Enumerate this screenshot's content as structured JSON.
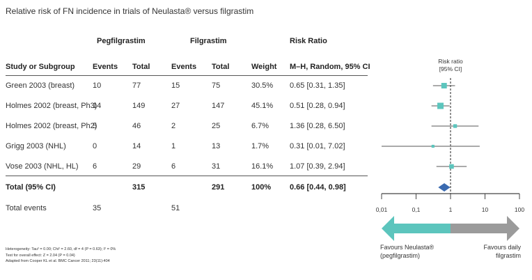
{
  "title": "Relative risk of FN incidence in trials of Neulasta® versus filgrastim",
  "groups": {
    "pegfilgrastim": "Pegfilgrastim",
    "filgrastim": "Filgrastim",
    "risk_ratio": "Risk Ratio"
  },
  "headers": {
    "study": "Study or Subgroup",
    "events1": "Events",
    "total1": "Total",
    "events2": "Events",
    "total2": "Total",
    "weight": "Weight",
    "method": "M–H, Random, 95% CI"
  },
  "rows": [
    {
      "study": "Green 2003 (breast)",
      "events1": "10",
      "total1": "77",
      "events2": "15",
      "total2": "75",
      "weight": "30.5%",
      "ci": "0.65 [0.31, 1.35]"
    },
    {
      "study": "Holmes 2002 (breast, Ph3)",
      "events1": "14",
      "total1": "149",
      "events2": "27",
      "total2": "147",
      "weight": "45.1%",
      "ci": "0.51 [0.28, 0.94]"
    },
    {
      "study": "Holmes 2002 (breast, Ph2)",
      "events1": "5",
      "total1": "46",
      "events2": "2",
      "total2": "25",
      "weight": "6.7%",
      "ci": "1.36 [0.28, 6.50]"
    },
    {
      "study": "Grigg 2003 (NHL)",
      "events1": "0",
      "total1": "14",
      "events2": "1",
      "total2": "13",
      "weight": "1.7%",
      "ci": "0.31 [0.01, 7.02]"
    },
    {
      "study": "Vose 2003 (NHL, HL)",
      "events1": "6",
      "total1": "29",
      "events2": "6",
      "total2": "31",
      "weight": "16.1%",
      "ci": "1.07 [0.39, 2.94]"
    }
  ],
  "total_row": {
    "label": "Total (95% CI)",
    "total1": "315",
    "total2": "291",
    "weight": "100%",
    "ci": "0.66 [0.44, 0.98]"
  },
  "events_row": {
    "label": "Total events",
    "events1": "35",
    "events2": "51"
  },
  "notes": [
    "Heterogeneity: Tau² = 0.00; Chi² = 2.60, df = 4 (P = 0.63); I² = 0%",
    "Test for overall effect: Z = 2.04 (P = 0.04)",
    "Adapted from Cooper KL et al. BMC Cancer 2011; 23(11):404"
  ],
  "chart_data": {
    "type": "forest",
    "title": "Risk ratio",
    "subtitle": "[95% CI]",
    "x_scale": "log",
    "xlim": [
      0.01,
      100
    ],
    "ticks": [
      0.01,
      0.1,
      1,
      10,
      100
    ],
    "tick_labels": [
      "0,01",
      "0,1",
      "1",
      "10",
      "100"
    ],
    "reference_line": 1,
    "studies": [
      {
        "rr": 0.65,
        "lo": 0.31,
        "hi": 1.35,
        "weight": 30.5
      },
      {
        "rr": 0.51,
        "lo": 0.28,
        "hi": 0.94,
        "weight": 45.1
      },
      {
        "rr": 1.36,
        "lo": 0.28,
        "hi": 6.5,
        "weight": 6.7
      },
      {
        "rr": 0.31,
        "lo": 0.01,
        "hi": 7.02,
        "weight": 1.7
      },
      {
        "rr": 1.07,
        "lo": 0.39,
        "hi": 2.94,
        "weight": 16.1
      }
    ],
    "pooled": {
      "rr": 0.66,
      "lo": 0.44,
      "hi": 0.98
    },
    "left_label": [
      "Favours Neulasta®",
      "(pegfilgrastim)"
    ],
    "right_label": [
      "Favours daily",
      "filgrastim"
    ],
    "colors": {
      "marker": "#5cc5bd",
      "diamond": "#3a6ab0",
      "left_arrow": "#5cc5bd",
      "right_arrow": "#9b9b9b",
      "axis": "#444444"
    }
  }
}
